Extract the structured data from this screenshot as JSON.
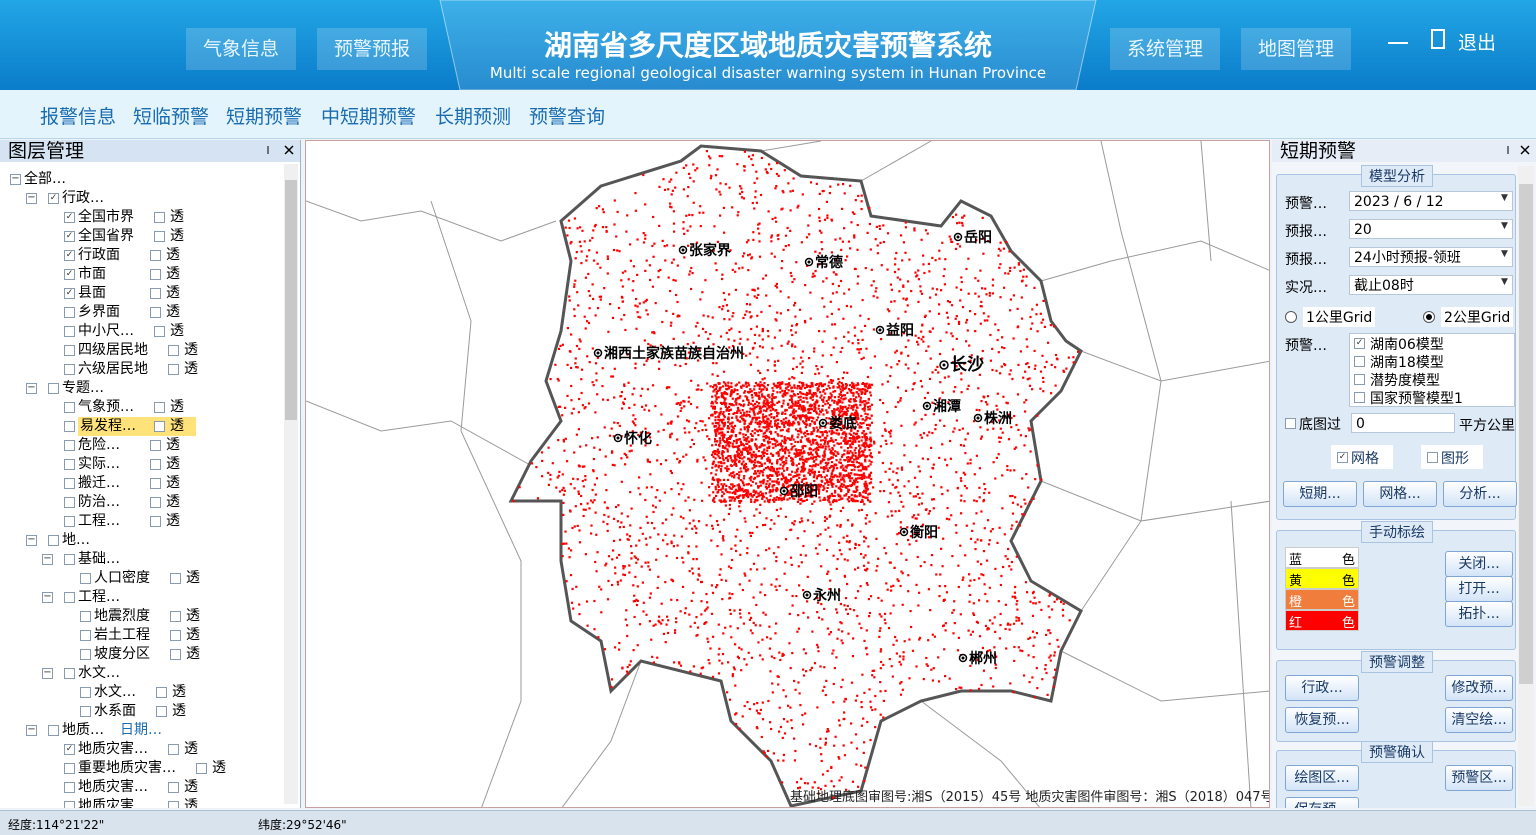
{
  "header": {
    "title": "湖南省多尺度区域地质灾害预警系统",
    "subtitle": "Multi scale regional geological disaster warning system in Hunan Province",
    "nav_left": [
      "气象信息",
      "预警预报"
    ],
    "nav_right": [
      "系统管理",
      "地图管理"
    ],
    "exit": "退出"
  },
  "menu": [
    "报警信息",
    "短临预警",
    "短期预警",
    "中短期预警",
    "长期预测",
    "预警查询"
  ],
  "layer_panel": {
    "title": "图层管理",
    "tree": [
      {
        "label": "全部…",
        "level": 0
      },
      {
        "label": "行政…",
        "level": 1,
        "checked": true
      },
      {
        "label": "全国市界",
        "level": 2,
        "checked": true,
        "transparency": "透"
      },
      {
        "label": "全国省界",
        "level": 2,
        "checked": true,
        "transparency": "透"
      },
      {
        "label": "行政面",
        "level": 2,
        "checked": true,
        "transparency": "透"
      },
      {
        "label": "市面",
        "level": 2,
        "checked": true,
        "transparency": "透"
      },
      {
        "label": "县面",
        "level": 2,
        "checked": true,
        "transparency": "透"
      },
      {
        "label": "乡界面",
        "level": 2,
        "transparency": "透"
      },
      {
        "label": "中小尺…",
        "level": 2,
        "transparency": "透"
      },
      {
        "label": "四级居民地",
        "level": 2,
        "transparency": "透"
      },
      {
        "label": "六级居民地",
        "level": 2,
        "transparency": "透"
      },
      {
        "label": "专题…",
        "level": 1
      },
      {
        "label": "气象预…",
        "level": 2,
        "transparency": "透"
      },
      {
        "label": "易发程…",
        "level": 2,
        "transparency": "透",
        "selected": true
      },
      {
        "label": "危险…",
        "level": 2,
        "transparency": "透"
      },
      {
        "label": "实际…",
        "level": 2,
        "transparency": "透"
      },
      {
        "label": "搬迁…",
        "level": 2,
        "transparency": "透"
      },
      {
        "label": "防治…",
        "level": 2,
        "transparency": "透"
      },
      {
        "label": "工程…",
        "level": 2,
        "transparency": "透"
      },
      {
        "label": "地…",
        "level": 1
      },
      {
        "label": "基础…",
        "level": 2
      },
      {
        "label": "人口密度",
        "level": 3,
        "transparency": "透"
      },
      {
        "label": "工程…",
        "level": 2
      },
      {
        "label": "地震烈度",
        "level": 3,
        "transparency": "透"
      },
      {
        "label": "岩土工程",
        "level": 3,
        "transparency": "透"
      },
      {
        "label": "坡度分区",
        "level": 3,
        "transparency": "透"
      },
      {
        "label": "水文…",
        "level": 2
      },
      {
        "label": "水文…",
        "level": 3,
        "transparency": "透"
      },
      {
        "label": "水系面",
        "level": 3,
        "transparency": "透"
      },
      {
        "label": "地质…",
        "level": 1,
        "extra": "日期…"
      },
      {
        "label": "地质灾害…",
        "level": 2,
        "checked": true,
        "transparency": "透"
      },
      {
        "label": "重要地质灾害…",
        "level": 2,
        "transparency": "透"
      },
      {
        "label": "地质灾害…",
        "level": 2,
        "transparency": "透"
      },
      {
        "label": "地质灾害…",
        "level": 2,
        "transparency": "透"
      }
    ]
  },
  "map": {
    "cities": [
      "岳阳",
      "常德",
      "张家界",
      "益阳",
      "长沙",
      "湘西土家族苗族自治州",
      "湘潭",
      "株洲",
      "怀化",
      "娄底",
      "邵阳",
      "衡阳",
      "永州",
      "郴州"
    ],
    "note": "基础地理底图审图号:湘S（2015）45号  地质灾害图件审图号：湘S（2018）047号"
  },
  "warning_panel": {
    "title": "短期预警",
    "model_analysis": {
      "title": "模型分析",
      "fields": [
        {
          "label": "预警…",
          "value": "2023 / 6 / 12"
        },
        {
          "label": "预报…",
          "value": 20
        },
        {
          "label": "预报…",
          "value": "24小时预报-领班"
        },
        {
          "label": "实况…",
          "value": "截止08时"
        }
      ],
      "grid_options": [
        {
          "label": "1公里Grid",
          "selected": false
        },
        {
          "label": "2公里Grid",
          "selected": true
        }
      ],
      "model_label": "预警…",
      "models": [
        {
          "label": "湖南06模型",
          "checked": true
        },
        {
          "label": "湖南18模型",
          "checked": false
        },
        {
          "label": "潜势度模型",
          "checked": false
        },
        {
          "label": "国家预警模型1",
          "checked": false
        }
      ],
      "base_filter": {
        "label": "底图过",
        "value": 0,
        "unit": "平方公里"
      },
      "layers": [
        {
          "label": "网格",
          "checked": true
        },
        {
          "label": "图形",
          "checked": false
        }
      ],
      "buttons": [
        "短期...",
        "网格...",
        "分析..."
      ]
    },
    "manual_plot": {
      "title": "手动标绘",
      "colors": [
        {
          "name": "蓝",
          "suffix": "色",
          "color": "#ffffff",
          "text_color": "#000000"
        },
        {
          "name": "黄",
          "suffix": "色",
          "color": "#ffff00",
          "text_color": "#000000"
        },
        {
          "name": "橙",
          "suffix": "色",
          "color": "#f07d3c",
          "text_color": "#ffffff"
        },
        {
          "name": "红",
          "suffix": "色",
          "color": "#ff0000",
          "text_color": "#ffffff"
        }
      ],
      "buttons": [
        "关闭...",
        "打开...",
        "拓扑..."
      ]
    },
    "adjust": {
      "title": "预警调整",
      "buttons": [
        "行政...",
        "修改预...",
        "恢复预...",
        "清空绘..."
      ]
    },
    "confirm": {
      "title": "预警确认",
      "buttons": [
        "绘图区...",
        "预警区...",
        "保存预..."
      ]
    }
  },
  "status_bar": {
    "longitude": "经度:114°21'22\"",
    "latitude": "纬度:29°52'46\""
  }
}
